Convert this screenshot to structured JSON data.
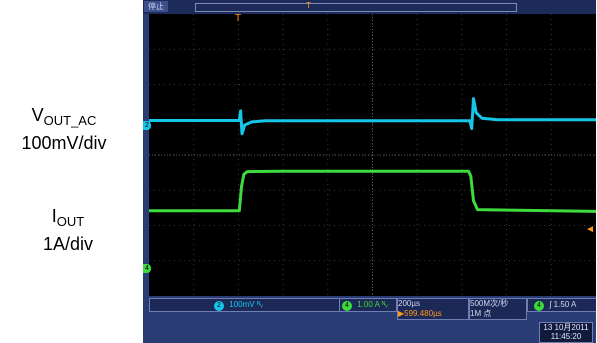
{
  "labels": {
    "vout_main": "V",
    "vout_sub": "OUT_AC",
    "vout_scale": "100mV/div",
    "iout_main": "I",
    "iout_sub": "OUT",
    "iout_scale": "1A/div"
  },
  "scope": {
    "run_status": "停止",
    "trigger_position_marker": "T",
    "time_marker": "T",
    "ch2_marker": "2",
    "ch4_marker": "4",
    "trigger_level_marker": "◄",
    "status": {
      "ch2_num": "2",
      "ch2_scale": "100mV",
      "ch2_bw": "ᴺᵥ",
      "ch4_num": "4",
      "ch4_scale": "1.00 A",
      "ch4_bw": "ᴺᵥ",
      "timebase": "200µs",
      "trigger_delay": "▶599.480µs",
      "sample_rate": "500M次/秒",
      "record_length": "1M 点",
      "trigger_ch": "4",
      "trigger_slope": "∫",
      "trigger_level": "1.50 A"
    },
    "date": "13 10月2011",
    "time": "11:45:20"
  },
  "colors": {
    "ch2": "#16c6e8",
    "ch4": "#3ddb3d",
    "trigger": "#ff9a1a",
    "screen_bg": "#000000",
    "frame_bg": "#2a3c74"
  },
  "chart_data": {
    "type": "line",
    "divisions": {
      "x": 10,
      "y": 8
    },
    "series": [
      {
        "name": "VOUT_AC",
        "points": [
          [
            0,
            0.98
          ],
          [
            2.02,
            0.98
          ],
          [
            2.05,
            1.25
          ],
          [
            2.08,
            0.6
          ],
          [
            2.14,
            0.85
          ],
          [
            2.3,
            0.94
          ],
          [
            2.6,
            0.97
          ],
          [
            7.18,
            0.97
          ],
          [
            7.22,
            0.75
          ],
          [
            7.26,
            1.6
          ],
          [
            7.32,
            1.2
          ],
          [
            7.45,
            1.04
          ],
          [
            7.8,
            1.0
          ],
          [
            10,
            1.0
          ]
        ]
      },
      {
        "name": "IOUT",
        "points": [
          [
            0,
            -1.58
          ],
          [
            2.02,
            -1.58
          ],
          [
            2.07,
            -0.9
          ],
          [
            2.12,
            -0.55
          ],
          [
            2.2,
            -0.47
          ],
          [
            3.0,
            -0.46
          ],
          [
            7.15,
            -0.46
          ],
          [
            7.2,
            -0.6
          ],
          [
            7.26,
            -1.3
          ],
          [
            7.35,
            -1.55
          ],
          [
            10,
            -1.6
          ]
        ]
      }
    ]
  }
}
